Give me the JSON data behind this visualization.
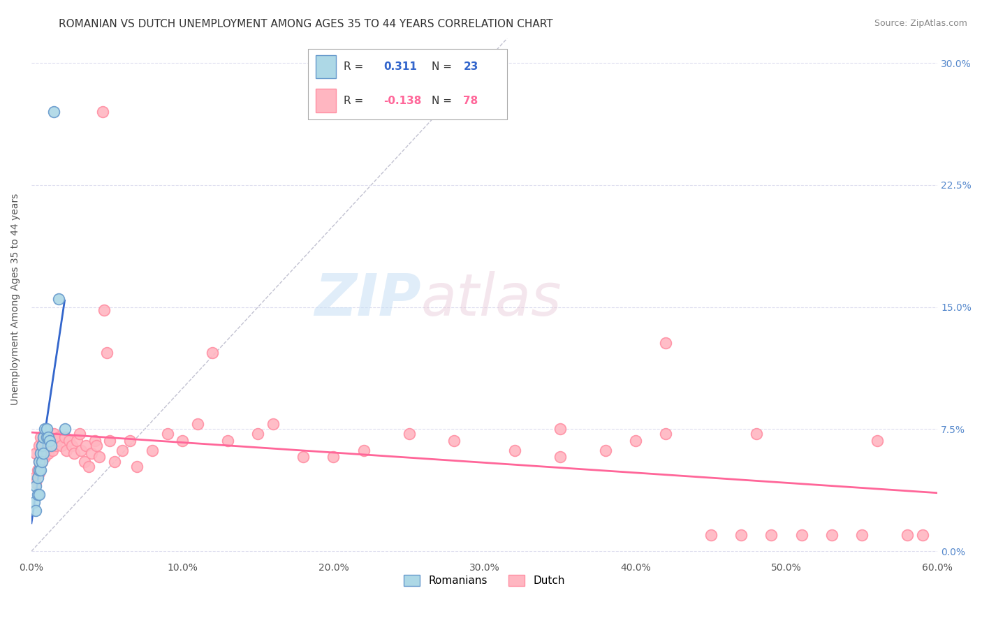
{
  "title": "ROMANIAN VS DUTCH UNEMPLOYMENT AMONG AGES 35 TO 44 YEARS CORRELATION CHART",
  "source": "Source: ZipAtlas.com",
  "ylabel": "Unemployment Among Ages 35 to 44 years",
  "xlim": [
    0.0,
    0.6
  ],
  "ylim": [
    -0.005,
    0.315
  ],
  "xticks": [
    0.0,
    0.1,
    0.2,
    0.3,
    0.4,
    0.5,
    0.6
  ],
  "yticks": [
    0.0,
    0.075,
    0.15,
    0.225,
    0.3
  ],
  "ytick_labels_right": [
    "0.0%",
    "7.5%",
    "15.0%",
    "22.5%",
    "30.0%"
  ],
  "xtick_labels": [
    "0.0%",
    "10.0%",
    "20.0%",
    "30.0%",
    "40.0%",
    "50.0%",
    "60.0%"
  ],
  "romanian_fill_color": "#add8e6",
  "dutch_fill_color": "#ffb6c1",
  "romanian_edge_color": "#6699cc",
  "dutch_edge_color": "#ff8fa3",
  "romanian_line_color": "#3366cc",
  "dutch_line_color": "#ff6699",
  "diag_line_color": "#bbbbcc",
  "background_color": "#ffffff",
  "grid_color": "#ddddee",
  "title_fontsize": 11,
  "axis_label_fontsize": 10,
  "tick_fontsize": 10,
  "source_fontsize": 9,
  "ro_x": [
    0.002,
    0.003,
    0.003,
    0.004,
    0.004,
    0.005,
    0.005,
    0.005,
    0.006,
    0.006,
    0.007,
    0.007,
    0.008,
    0.008,
    0.009,
    0.01,
    0.01,
    0.011,
    0.012,
    0.013,
    0.015,
    0.018,
    0.022
  ],
  "ro_y": [
    0.03,
    0.025,
    0.04,
    0.035,
    0.045,
    0.05,
    0.055,
    0.035,
    0.06,
    0.05,
    0.065,
    0.055,
    0.07,
    0.06,
    0.075,
    0.07,
    0.075,
    0.07,
    0.068,
    0.065,
    0.27,
    0.155,
    0.075
  ],
  "du_x": [
    0.002,
    0.003,
    0.003,
    0.004,
    0.005,
    0.005,
    0.005,
    0.006,
    0.006,
    0.007,
    0.007,
    0.008,
    0.008,
    0.009,
    0.01,
    0.01,
    0.011,
    0.012,
    0.013,
    0.014,
    0.015,
    0.016,
    0.017,
    0.018,
    0.02,
    0.022,
    0.023,
    0.025,
    0.027,
    0.028,
    0.03,
    0.032,
    0.033,
    0.035,
    0.036,
    0.038,
    0.04,
    0.042,
    0.043,
    0.045,
    0.047,
    0.048,
    0.05,
    0.052,
    0.055,
    0.06,
    0.065,
    0.07,
    0.08,
    0.09,
    0.1,
    0.11,
    0.12,
    0.13,
    0.15,
    0.16,
    0.18,
    0.2,
    0.22,
    0.25,
    0.28,
    0.32,
    0.35,
    0.38,
    0.4,
    0.42,
    0.45,
    0.47,
    0.49,
    0.51,
    0.53,
    0.55,
    0.56,
    0.58,
    0.59,
    0.42,
    0.35,
    0.48
  ],
  "du_y": [
    0.045,
    0.042,
    0.06,
    0.05,
    0.048,
    0.055,
    0.065,
    0.06,
    0.07,
    0.065,
    0.055,
    0.06,
    0.068,
    0.058,
    0.063,
    0.07,
    0.06,
    0.065,
    0.068,
    0.062,
    0.072,
    0.065,
    0.068,
    0.07,
    0.065,
    0.07,
    0.062,
    0.068,
    0.065,
    0.06,
    0.068,
    0.072,
    0.062,
    0.055,
    0.065,
    0.052,
    0.06,
    0.068,
    0.065,
    0.058,
    0.27,
    0.148,
    0.122,
    0.068,
    0.055,
    0.062,
    0.068,
    0.052,
    0.062,
    0.072,
    0.068,
    0.078,
    0.122,
    0.068,
    0.072,
    0.078,
    0.058,
    0.058,
    0.062,
    0.072,
    0.068,
    0.062,
    0.058,
    0.062,
    0.068,
    0.072,
    0.01,
    0.01,
    0.01,
    0.01,
    0.01,
    0.01,
    0.068,
    0.01,
    0.01,
    0.128,
    0.075,
    0.072
  ]
}
